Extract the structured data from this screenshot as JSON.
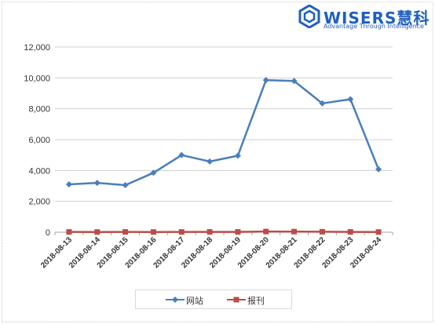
{
  "logo": {
    "brand": "WISERS慧科",
    "tagline": "Advantage Through Intelligence"
  },
  "colors": {
    "series_1": "#4a7ebb",
    "series_2": "#be4b48",
    "grid": "#d0d0d0",
    "axis_text": "#333333",
    "brand": "#1f5fbf"
  },
  "chart_data": {
    "type": "line",
    "title": "",
    "xlabel": "",
    "ylabel": "",
    "categories": [
      "2018-08-13",
      "2018-08-14",
      "2018-08-15",
      "2018-08-16",
      "2018-08-17",
      "2018-08-18",
      "2018-08-19",
      "2018-08-20",
      "2018-08-21",
      "2018-08-22",
      "2018-08-23",
      "2018-08-24"
    ],
    "series": [
      {
        "name": "网站",
        "marker": "diamond",
        "color": "#4a7ebb",
        "values": [
          3100,
          3200,
          3050,
          3850,
          5000,
          4580,
          4960,
          9860,
          9800,
          8350,
          8620,
          4080
        ]
      },
      {
        "name": "报刊",
        "marker": "square",
        "color": "#be4b48",
        "values": [
          20,
          15,
          20,
          15,
          20,
          20,
          20,
          45,
          40,
          30,
          20,
          15
        ]
      }
    ],
    "ylim": [
      0,
      12000
    ],
    "yticks": [
      0,
      2000,
      4000,
      6000,
      8000,
      10000,
      12000
    ],
    "ytick_labels": [
      "0",
      "2,000",
      "4,000",
      "6,000",
      "8,000",
      "10,000",
      "12,000"
    ],
    "grid": true,
    "legend_position": "bottom"
  }
}
